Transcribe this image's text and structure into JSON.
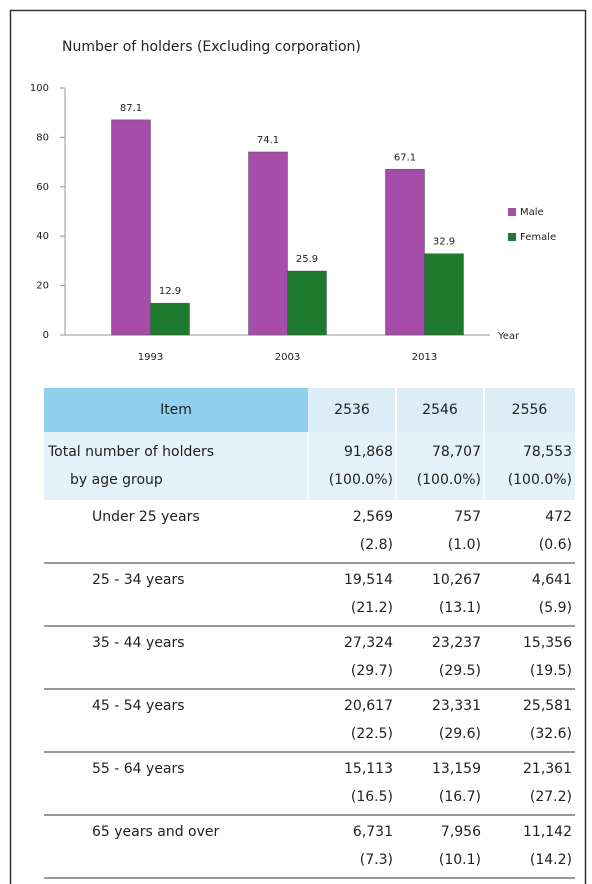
{
  "chart_data": {
    "type": "bar",
    "title": "Number of holders (Excluding corporation)",
    "x_label": "Year",
    "categories": [
      "1993",
      "2003",
      "2013"
    ],
    "series": [
      {
        "name": "Male",
        "color": "#a64ca9",
        "values": [
          87.1,
          74.1,
          67.1
        ]
      },
      {
        "name": "Female",
        "color": "#1e7a2e",
        "values": [
          12.9,
          25.9,
          32.9
        ]
      }
    ],
    "ylim": [
      0,
      100
    ],
    "yticks": [
      0,
      20,
      40,
      60,
      80,
      100
    ],
    "legend": "right"
  },
  "table": {
    "header": [
      "Item",
      "2536",
      "2546",
      "2556"
    ],
    "rows": [
      {
        "label": [
          "Total number of holders",
          "by age group"
        ],
        "values": [
          "91,868",
          "78,707",
          "78,553"
        ],
        "shares": [
          "(100.0%)",
          "(100.0%)",
          "(100.0%)"
        ]
      },
      {
        "label": [
          "Under  25  years"
        ],
        "values": [
          "2,569",
          "757",
          "472"
        ],
        "shares": [
          "(2.8)",
          "(1.0)",
          "(0.6)"
        ]
      },
      {
        "label": [
          "25  -  34  years"
        ],
        "values": [
          "19,514",
          "10,267",
          "4,641"
        ],
        "shares": [
          "(21.2)",
          "(13.1)",
          "(5.9)"
        ]
      },
      {
        "label": [
          "35  -  44  years"
        ],
        "values": [
          "27,324",
          "23,237",
          "15,356"
        ],
        "shares": [
          "(29.7)",
          "(29.5)",
          "(19.5)"
        ]
      },
      {
        "label": [
          "45  -  54 years"
        ],
        "values": [
          "20,617",
          "23,331",
          "25,581"
        ],
        "shares": [
          "(22.5)",
          "(29.6)",
          "(32.6)"
        ]
      },
      {
        "label": [
          "55  -  64 years"
        ],
        "values": [
          "15,113",
          "13,159",
          "21,361"
        ],
        "shares": [
          "(16.5)",
          "(16.7)",
          "(27.2)"
        ]
      },
      {
        "label": [
          "65 years and over"
        ],
        "values": [
          "6,731",
          "7,956",
          "11,142"
        ],
        "shares": [
          "(7.3)",
          "(10.1)",
          "(14.2)"
        ]
      }
    ]
  }
}
